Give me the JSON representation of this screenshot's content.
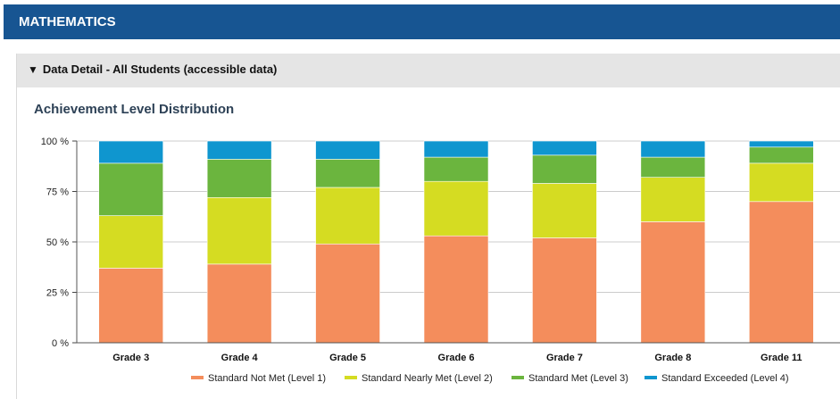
{
  "header": {
    "title": "MATHEMATICS"
  },
  "panel": {
    "toggle_glyph": "▼",
    "title": "Data Detail - All Students (accessible data)"
  },
  "chart_data": {
    "type": "bar",
    "stacked": true,
    "title": "Achievement Level Distribution",
    "categories": [
      "Grade 3",
      "Grade 4",
      "Grade 5",
      "Grade 6",
      "Grade 7",
      "Grade 8",
      "Grade 11"
    ],
    "ylim": [
      0,
      100
    ],
    "yticks": [
      {
        "value": 0,
        "label": "0 %"
      },
      {
        "value": 25,
        "label": "25 %"
      },
      {
        "value": 50,
        "label": "50 %"
      },
      {
        "value": 75,
        "label": "75 %"
      },
      {
        "value": 100,
        "label": "100 %"
      }
    ],
    "grid": true,
    "legend_position": "bottom",
    "series": [
      {
        "name": "Standard Not Met (Level 1)",
        "color": "#f48d5c",
        "values": [
          37,
          39,
          49,
          53,
          52,
          60,
          70
        ]
      },
      {
        "name": "Standard Nearly Met (Level 2)",
        "color": "#d5dc22",
        "values": [
          26,
          33,
          28,
          27,
          27,
          22,
          19
        ]
      },
      {
        "name": "Standard Met (Level 3)",
        "color": "#6bb53e",
        "values": [
          26,
          19,
          14,
          12,
          14,
          10,
          8
        ]
      },
      {
        "name": "Standard Exceeded (Level 4)",
        "color": "#0f96cf",
        "values": [
          11,
          9,
          9,
          8,
          7,
          8,
          3
        ]
      }
    ]
  }
}
